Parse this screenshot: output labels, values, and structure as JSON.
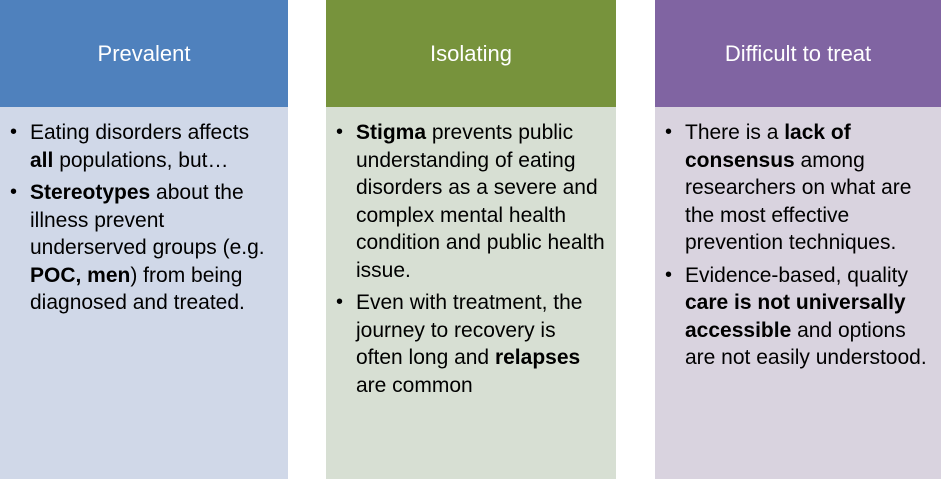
{
  "columns": [
    {
      "title": "Prevalent",
      "color": "#4f81bd",
      "body_color": "#d0d8e8",
      "bullets": [
        {
          "parts": [
            {
              "text": "Eating disorders affects ",
              "bold": false
            },
            {
              "text": "all",
              "bold": true
            },
            {
              "text": " populations, but…",
              "bold": false
            }
          ]
        },
        {
          "parts": [
            {
              "text": "Stereotypes",
              "bold": true
            },
            {
              "text": " about the illness prevent underserved groups (e.g. ",
              "bold": false
            },
            {
              "text": "POC, men",
              "bold": true
            },
            {
              "text": ") from being diagnosed and treated.",
              "bold": false
            }
          ]
        }
      ]
    },
    {
      "title": "Isolating",
      "color": "#77933c",
      "body_color": "#d7dfd3",
      "bullets": [
        {
          "parts": [
            {
              "text": "Stigma",
              "bold": true
            },
            {
              "text": " prevents public understanding of eating disorders as a severe and complex mental health condition and public health issue.",
              "bold": false
            }
          ]
        },
        {
          "parts": [
            {
              "text": "Even with treatment, the journey to recovery is often long and ",
              "bold": false
            },
            {
              "text": "relapses",
              "bold": true
            },
            {
              "text": " are common",
              "bold": false
            }
          ]
        }
      ]
    },
    {
      "title": "Difficult to treat",
      "color": "#8064a2",
      "body_color": "#d9d3df",
      "bullets": [
        {
          "parts": [
            {
              "text": "There is a ",
              "bold": false
            },
            {
              "text": "lack of consensus",
              "bold": true
            },
            {
              "text": " among researchers on what are the most effective prevention techniques.",
              "bold": false
            }
          ]
        },
        {
          "parts": [
            {
              "text": "Evidence-based, quality ",
              "bold": false
            },
            {
              "text": "care is not universally accessible",
              "bold": true
            },
            {
              "text": " and options are not easily understood.",
              "bold": false
            }
          ]
        }
      ]
    }
  ]
}
